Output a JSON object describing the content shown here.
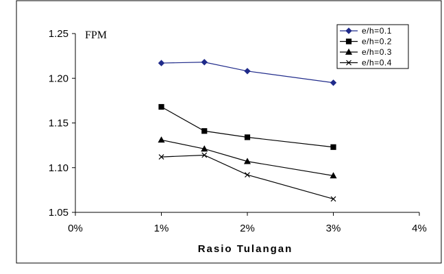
{
  "chart_data": {
    "type": "line",
    "title": "",
    "xlabel": "Rasio Tulangan",
    "ylabel": "FPM",
    "xlim": [
      0,
      4
    ],
    "ylim": [
      1.05,
      1.25
    ],
    "x_ticks": [
      "0%",
      "1%",
      "2%",
      "3%",
      "4%"
    ],
    "y_ticks": [
      "1.05",
      "1.10",
      "1.15",
      "1.20",
      "1.25"
    ],
    "x": [
      1,
      1.5,
      2,
      3
    ],
    "grid": false,
    "legend_position": "top-right",
    "series": [
      {
        "name": "e/h=0.1",
        "values": [
          1.217,
          1.218,
          1.208,
          1.195
        ],
        "marker": "diamond",
        "color": "#1f2a8a"
      },
      {
        "name": "e/h=0.2",
        "values": [
          1.168,
          1.141,
          1.134,
          1.123
        ],
        "marker": "square",
        "color": "#000000"
      },
      {
        "name": "e/h=0.3",
        "values": [
          1.131,
          1.121,
          1.107,
          1.091
        ],
        "marker": "triangle",
        "color": "#000000"
      },
      {
        "name": "e/h=0.4",
        "values": [
          1.112,
          1.114,
          1.092,
          1.065
        ],
        "marker": "x",
        "color": "#000000"
      }
    ]
  }
}
